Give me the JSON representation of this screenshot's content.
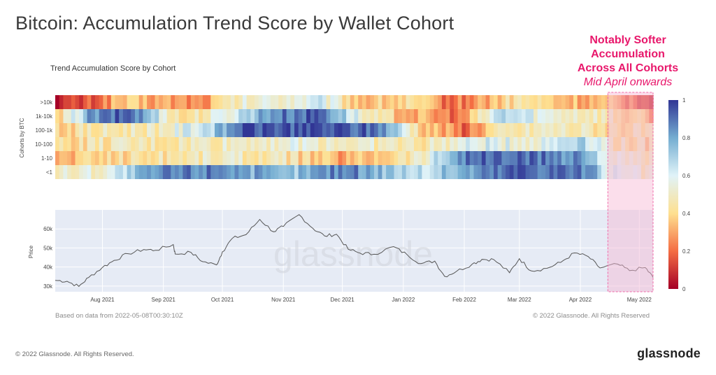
{
  "page": {
    "title": "Bitcoin: Accumulation Trend Score by Wallet Cohort",
    "annotation": {
      "line1": "Notably Softer",
      "line2": "Accumulation",
      "line3": "Across All Cohorts",
      "line4": "Mid April onwards"
    },
    "footer_left": "© 2022 Glassnode. All Rights Reserved.",
    "logo": "glassnode",
    "watermark": "glassnode"
  },
  "chart_meta": {
    "based_on": "Based on data from 2022-05-08T00:30:10Z",
    "copyright": "© 2022 Glassnode. All Rights Reserved",
    "highlight_color": "#f7b6d2"
  },
  "chart_data": [
    {
      "type": "heatmap",
      "title": "Trend Accumulation Score by Cohort",
      "ylabel": "Cohorts by BTC",
      "rows": [
        ">10k",
        "1k-10k",
        "100-1k",
        "10-100",
        "1-10",
        "<1"
      ],
      "x_start": "2021-07-08",
      "x_end": "2022-05-08",
      "colorscale": [
        "#a50026",
        "#f46d43",
        "#fee090",
        "#e0f3f8",
        "#74add1",
        "#313695"
      ],
      "colorbar_ticks": [
        "0",
        "0.2",
        "0.4",
        "0.6",
        "0.8",
        "1"
      ],
      "zrange": [
        0,
        1
      ],
      "row_profiles": [
        {
          "name": ">10k",
          "points": [
            [
              "2021-07-08",
              0.05
            ],
            [
              "2021-07-25",
              0.15
            ],
            [
              "2021-08-10",
              0.35
            ],
            [
              "2021-09-01",
              0.3
            ],
            [
              "2021-09-20",
              0.25
            ],
            [
              "2021-10-10",
              0.5
            ],
            [
              "2021-11-01",
              0.55
            ],
            [
              "2021-11-20",
              0.6
            ],
            [
              "2021-12-10",
              0.35
            ],
            [
              "2022-01-05",
              0.4
            ],
            [
              "2022-01-25",
              0.2
            ],
            [
              "2022-02-10",
              0.3
            ],
            [
              "2022-03-01",
              0.45
            ],
            [
              "2022-03-20",
              0.35
            ],
            [
              "2022-04-15",
              0.3
            ],
            [
              "2022-05-08",
              0.15
            ]
          ]
        },
        {
          "name": "1k-10k",
          "points": [
            [
              "2021-07-08",
              0.3
            ],
            [
              "2021-07-25",
              0.8
            ],
            [
              "2021-08-15",
              0.95
            ],
            [
              "2021-09-10",
              0.4
            ],
            [
              "2021-10-01",
              0.55
            ],
            [
              "2021-10-25",
              0.85
            ],
            [
              "2021-11-20",
              0.95
            ],
            [
              "2021-12-15",
              0.45
            ],
            [
              "2022-01-10",
              0.3
            ],
            [
              "2022-01-30",
              0.2
            ],
            [
              "2022-02-20",
              0.7
            ],
            [
              "2022-03-15",
              0.55
            ],
            [
              "2022-04-10",
              0.5
            ],
            [
              "2022-05-08",
              0.3
            ]
          ]
        },
        {
          "name": "100-1k",
          "points": [
            [
              "2021-07-08",
              0.4
            ],
            [
              "2021-08-01",
              0.45
            ],
            [
              "2021-09-01",
              0.5
            ],
            [
              "2021-10-01",
              0.75
            ],
            [
              "2021-10-10",
              0.95
            ],
            [
              "2021-11-15",
              0.95
            ],
            [
              "2021-12-20",
              0.9
            ],
            [
              "2022-01-10",
              0.4
            ],
            [
              "2022-02-01",
              0.2
            ],
            [
              "2022-02-15",
              0.4
            ],
            [
              "2022-03-15",
              0.5
            ],
            [
              "2022-04-10",
              0.45
            ],
            [
              "2022-05-08",
              0.4
            ]
          ]
        },
        {
          "name": "10-100",
          "points": [
            [
              "2021-07-08",
              0.4
            ],
            [
              "2021-08-01",
              0.45
            ],
            [
              "2021-09-01",
              0.45
            ],
            [
              "2021-10-01",
              0.5
            ],
            [
              "2021-11-01",
              0.55
            ],
            [
              "2021-12-10",
              0.5
            ],
            [
              "2022-01-10",
              0.45
            ],
            [
              "2022-02-10",
              0.6
            ],
            [
              "2022-03-10",
              0.55
            ],
            [
              "2022-04-01",
              0.75
            ],
            [
              "2022-04-20",
              0.45
            ],
            [
              "2022-05-08",
              0.4
            ]
          ]
        },
        {
          "name": "1-10",
          "points": [
            [
              "2021-07-08",
              0.3
            ],
            [
              "2021-08-01",
              0.4
            ],
            [
              "2021-09-01",
              0.45
            ],
            [
              "2021-10-01",
              0.5
            ],
            [
              "2021-11-01",
              0.45
            ],
            [
              "2021-12-01",
              0.3
            ],
            [
              "2022-01-10",
              0.5
            ],
            [
              "2022-02-01",
              0.9
            ],
            [
              "2022-03-01",
              0.9
            ],
            [
              "2022-04-01",
              0.85
            ],
            [
              "2022-04-20",
              0.5
            ],
            [
              "2022-05-08",
              0.45
            ]
          ]
        },
        {
          "name": "<1",
          "points": [
            [
              "2021-07-08",
              0.5
            ],
            [
              "2021-08-01",
              0.55
            ],
            [
              "2021-09-01",
              0.85
            ],
            [
              "2021-10-01",
              0.9
            ],
            [
              "2021-11-01",
              0.7
            ],
            [
              "2021-12-01",
              0.9
            ],
            [
              "2022-01-10",
              0.65
            ],
            [
              "2022-02-01",
              0.8
            ],
            [
              "2022-03-01",
              0.95
            ],
            [
              "2022-04-01",
              0.9
            ],
            [
              "2022-04-20",
              0.55
            ],
            [
              "2022-05-08",
              0.5
            ]
          ]
        }
      ]
    },
    {
      "type": "line",
      "ylabel": "Price",
      "y_ticks": [
        30000,
        40000,
        50000,
        60000
      ],
      "y_tick_labels": [
        "30k",
        "40k",
        "50k",
        "60k"
      ],
      "ylim": [
        27000,
        70000
      ],
      "x_ticks": [
        "2021-08-01",
        "2021-09-01",
        "2021-10-01",
        "2021-11-01",
        "2021-12-01",
        "2022-01-01",
        "2022-02-01",
        "2022-03-01",
        "2022-04-01",
        "2022-05-01"
      ],
      "x_tick_labels": [
        "Aug 2021",
        "Sep 2021",
        "Oct 2021",
        "Nov 2021",
        "Dec 2021",
        "Jan 2022",
        "Feb 2022",
        "Mar 2022",
        "Apr 2022",
        "May 2022"
      ],
      "x_start": "2021-07-08",
      "x_end": "2022-05-08",
      "series": [
        {
          "points": [
            [
              "2021-07-08",
              33000
            ],
            [
              "2021-07-14",
              32500
            ],
            [
              "2021-07-20",
              29800
            ],
            [
              "2021-07-25",
              34500
            ],
            [
              "2021-08-01",
              39800
            ],
            [
              "2021-08-07",
              43500
            ],
            [
              "2021-08-14",
              47000
            ],
            [
              "2021-08-22",
              49200
            ],
            [
              "2021-08-28",
              48800
            ],
            [
              "2021-09-06",
              51800
            ],
            [
              "2021-09-07",
              46800
            ],
            [
              "2021-09-15",
              47700
            ],
            [
              "2021-09-21",
              42800
            ],
            [
              "2021-09-28",
              41100
            ],
            [
              "2021-10-01",
              48000
            ],
            [
              "2021-10-06",
              55000
            ],
            [
              "2021-10-13",
              57000
            ],
            [
              "2021-10-20",
              65000
            ],
            [
              "2021-10-27",
              58500
            ],
            [
              "2021-11-01",
              61300
            ],
            [
              "2021-11-09",
              67500
            ],
            [
              "2021-11-16",
              60300
            ],
            [
              "2021-11-22",
              56300
            ],
            [
              "2021-11-28",
              57200
            ],
            [
              "2021-12-04",
              49300
            ],
            [
              "2021-12-10",
              47300
            ],
            [
              "2021-12-17",
              46700
            ],
            [
              "2021-12-27",
              50700
            ],
            [
              "2022-01-03",
              46400
            ],
            [
              "2022-01-10",
              41800
            ],
            [
              "2022-01-17",
              43100
            ],
            [
              "2022-01-22",
              35100
            ],
            [
              "2022-01-28",
              37700
            ],
            [
              "2022-02-05",
              41500
            ],
            [
              "2022-02-10",
              44000
            ],
            [
              "2022-02-16",
              43900
            ],
            [
              "2022-02-24",
              37000
            ],
            [
              "2022-03-01",
              44400
            ],
            [
              "2022-03-07",
              38000
            ],
            [
              "2022-03-15",
              39300
            ],
            [
              "2022-03-22",
              42400
            ],
            [
              "2022-03-29",
              47400
            ],
            [
              "2022-04-05",
              45500
            ],
            [
              "2022-04-11",
              39500
            ],
            [
              "2022-04-20",
              41500
            ],
            [
              "2022-04-26",
              38100
            ],
            [
              "2022-05-04",
              39700
            ],
            [
              "2022-05-08",
              34500
            ]
          ]
        }
      ],
      "highlight_range": [
        "2022-04-15",
        "2022-05-08"
      ]
    }
  ]
}
